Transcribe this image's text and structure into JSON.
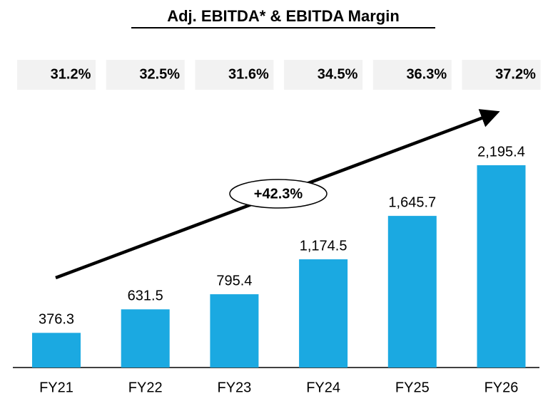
{
  "chart_data": {
    "type": "bar",
    "title": "Adj. EBITDA* & EBITDA Margin",
    "categories": [
      "FY21",
      "FY22",
      "FY23",
      "FY24",
      "FY25",
      "FY26"
    ],
    "values": [
      376.3,
      631.5,
      795.4,
      1174.5,
      1645.7,
      2195.4
    ],
    "value_labels": [
      "376.3",
      "631.5",
      "795.4",
      "1,174.5",
      "1,645.7",
      "2,195.4"
    ],
    "margin_values": [
      31.2,
      32.5,
      31.6,
      34.5,
      36.3,
      37.2
    ],
    "margin_labels": [
      "31.2%",
      "32.5%",
      "31.6%",
      "34.5%",
      "36.3%",
      "37.2%"
    ],
    "annotation": "+42.3%",
    "color": "#1ba9e1"
  }
}
